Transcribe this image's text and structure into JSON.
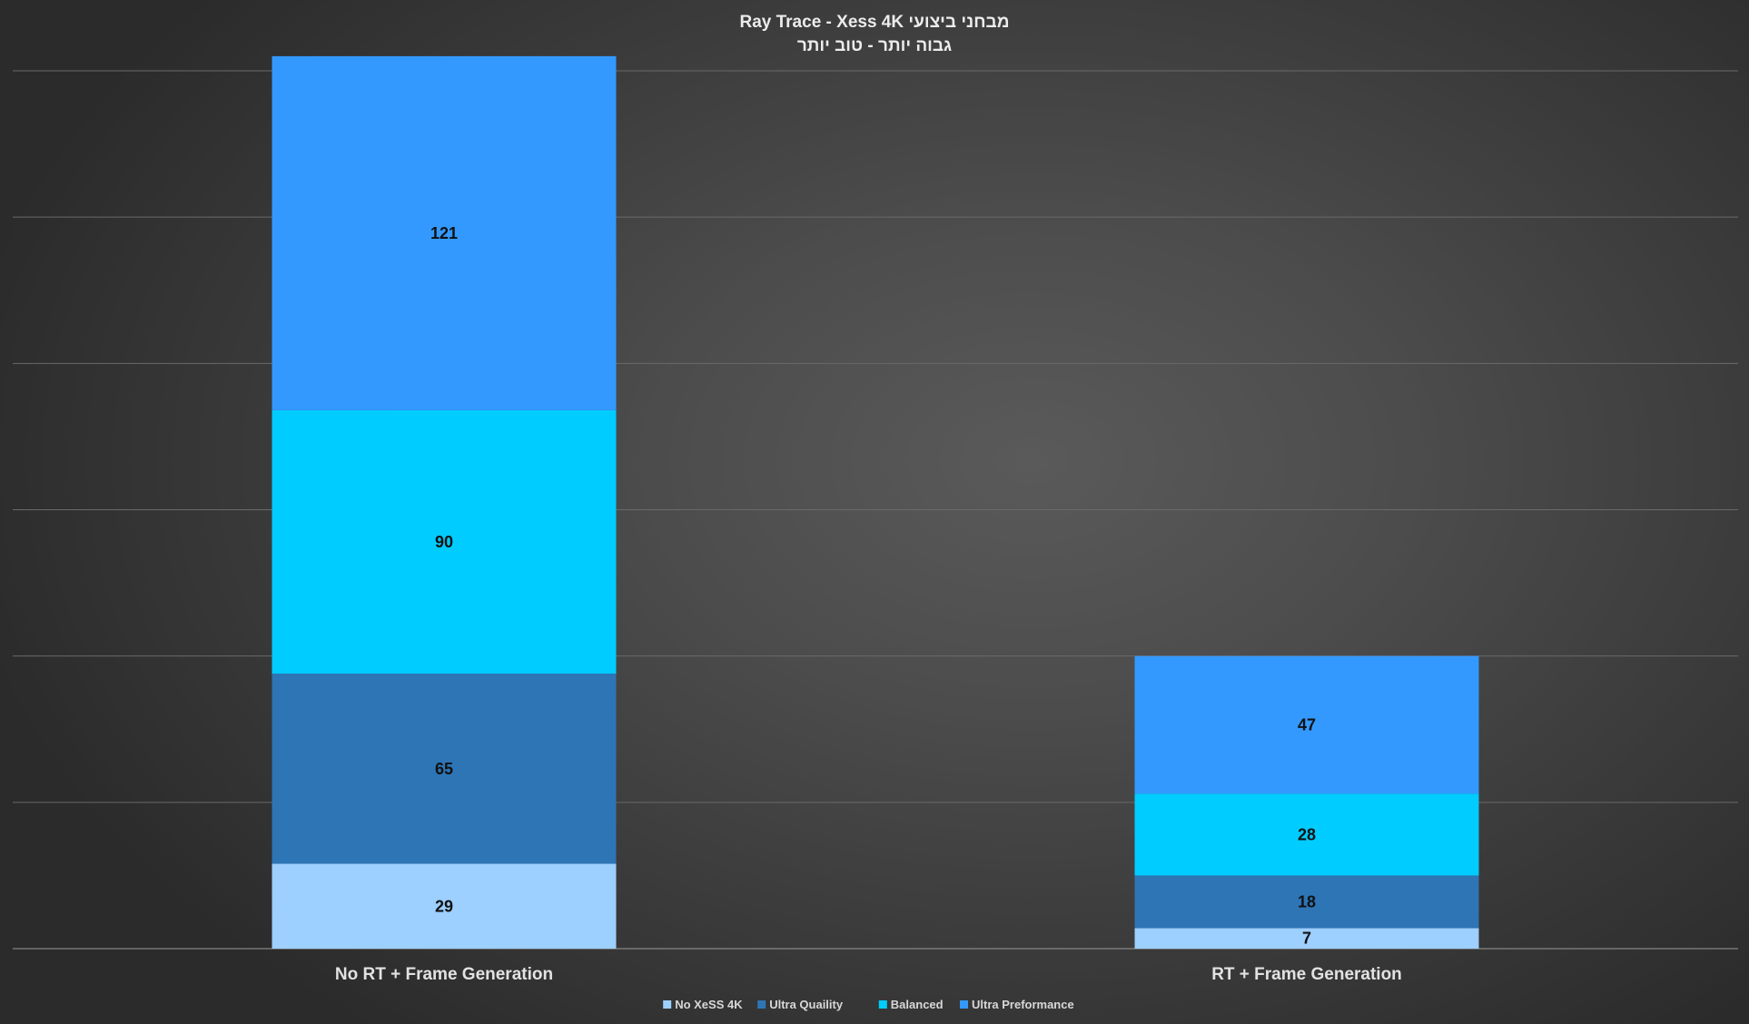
{
  "chart_data": {
    "type": "bar",
    "stacked": true,
    "title": "מבחני ביצועי Ray Trace - Xess 4K",
    "subtitle": "גבוה יותר - טוב יותר",
    "xlabel": "",
    "ylabel": "",
    "categories": [
      "No RT + Frame Generation",
      "RT + Frame Generation"
    ],
    "series": [
      {
        "name": "No XeSS 4K",
        "color": "#9dcfff",
        "values": [
          29,
          7
        ]
      },
      {
        "name": "Ultra Quaility",
        "color": "#2e75b6",
        "values": [
          65,
          18
        ]
      },
      {
        "name": "Balanced",
        "color": "#00ccff",
        "values": [
          90,
          28
        ]
      },
      {
        "name": "Ultra Preformance",
        "color": "#3399ff",
        "values": [
          121,
          47
        ]
      }
    ],
    "ylim": [
      0,
      300
    ],
    "y_gridlines": [
      50,
      100,
      150,
      200,
      250,
      300
    ],
    "y_axis_visible": false,
    "grid": true,
    "legend_position": "bottom",
    "data_labels": true
  }
}
